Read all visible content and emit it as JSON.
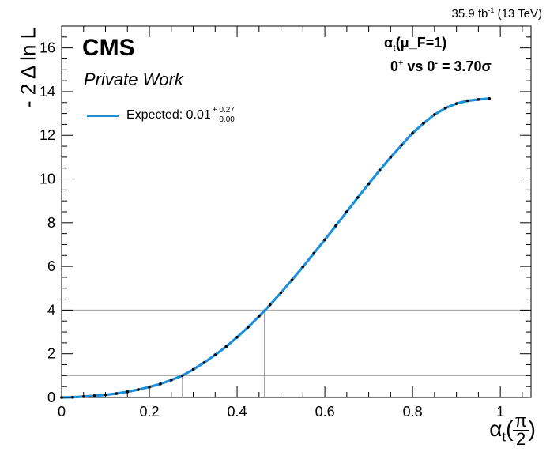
{
  "header": {
    "lumi": "35.9 fb",
    "lumi_exp": "-1",
    "energy": " (13 TeV)"
  },
  "labels": {
    "experiment": "CMS",
    "status": "Private Work",
    "model_prefix": "α",
    "model_sub": "t",
    "model_suffix": "(μ_F=1)",
    "hyp_a": "0",
    "hyp_a_sup": "+",
    "hyp_vs": " vs 0",
    "hyp_b_sup": "-",
    "signif": " =  3.70σ"
  },
  "legend": {
    "label": "Expected: 0.01",
    "err_up": "+ 0.27",
    "err_down": "− 0.00"
  },
  "axes": {
    "ylabel": "- 2 Δ ln L",
    "xlabel_main": "α",
    "xlabel_sub": "t",
    "xlabel_num": "π",
    "xlabel_den": "2"
  },
  "chart_data": {
    "type": "line",
    "xlim": [
      0,
      1.07
    ],
    "ylim": [
      0,
      17
    ],
    "xticks": [
      0,
      0.2,
      0.4,
      0.6,
      0.8,
      1
    ],
    "xtick_labels": [
      "0",
      "0.2",
      "0.4",
      "0.6",
      "0.8",
      "1"
    ],
    "yticks": [
      0,
      2,
      4,
      6,
      8,
      10,
      12,
      14,
      16
    ],
    "ytick_labels": [
      "0",
      "2",
      "4",
      "6",
      "8",
      "10",
      "12",
      "14",
      "16"
    ],
    "grid": false,
    "legend_position": "top-left",
    "reference_lines": [
      {
        "y": 1,
        "x_cross": 0.275
      },
      {
        "y": 4,
        "x_cross": 0.462
      }
    ],
    "series": [
      {
        "name": "Expected",
        "color": "#1E8FD9",
        "x": [
          0.0,
          0.025,
          0.05,
          0.075,
          0.1,
          0.125,
          0.15,
          0.175,
          0.2,
          0.225,
          0.25,
          0.275,
          0.3,
          0.325,
          0.35,
          0.375,
          0.4,
          0.425,
          0.45,
          0.475,
          0.5,
          0.525,
          0.55,
          0.575,
          0.6,
          0.625,
          0.65,
          0.675,
          0.7,
          0.725,
          0.75,
          0.775,
          0.8,
          0.825,
          0.85,
          0.875,
          0.9,
          0.925,
          0.95,
          0.975
        ],
        "y": [
          0.0,
          0.01,
          0.04,
          0.08,
          0.12,
          0.18,
          0.26,
          0.36,
          0.48,
          0.62,
          0.8,
          1.0,
          1.28,
          1.6,
          1.95,
          2.33,
          2.76,
          3.22,
          3.72,
          4.24,
          4.8,
          5.38,
          5.98,
          6.6,
          7.22,
          7.86,
          8.5,
          9.15,
          9.78,
          10.4,
          11.0,
          11.55,
          12.1,
          12.55,
          12.95,
          13.25,
          13.45,
          13.58,
          13.64,
          13.68
        ]
      }
    ]
  }
}
